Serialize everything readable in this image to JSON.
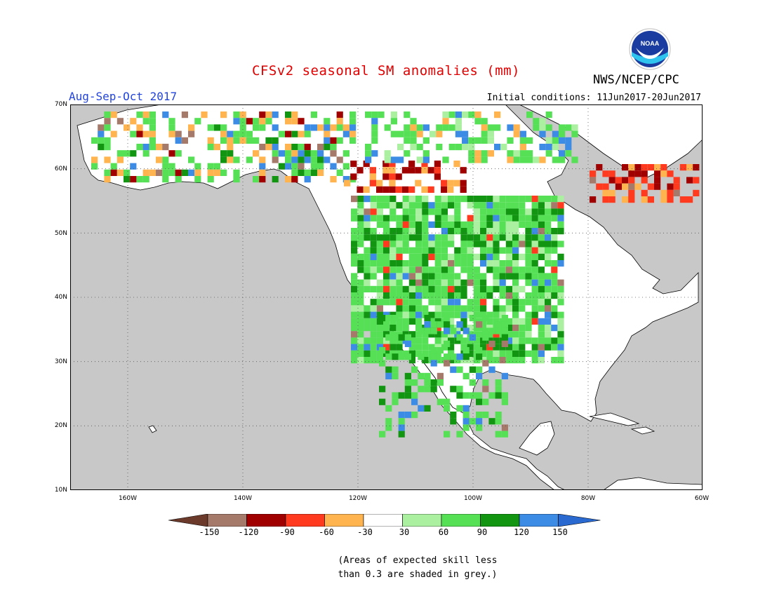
{
  "title": "CFSv2 seasonal SM anomalies (mm)",
  "season": "Aug-Sep-Oct 2017",
  "initial_conditions": "Initial conditions: 11Jun2017-20Jun2017",
  "agency": "NWS/NCEP/CPC",
  "logo_text": "NOAA",
  "lat_labels": [
    "70N",
    "60N",
    "50N",
    "40N",
    "30N",
    "20N",
    "10N"
  ],
  "lon_labels": [
    "160W",
    "140W",
    "120W",
    "100W",
    "80W",
    "60W"
  ],
  "colorbar": {
    "labels": [
      "-150",
      "-120",
      "-90",
      "-60",
      "-30",
      "30",
      "60",
      "90",
      "120",
      "150"
    ],
    "colors": [
      "#6b3a2a",
      "#a57a6b",
      "#a00000",
      "#ff3a1e",
      "#ffb450",
      "#ffffff",
      "#aaf0a0",
      "#55e055",
      "#129612",
      "#3c8ce6",
      "#2a6ad0"
    ]
  },
  "note_line1": "(Areas of expected skill less",
  "note_line2": "than 0.3 are shaded in grey.)",
  "colors": {
    "ocean": "#c8c8c8",
    "land": "#ffffff",
    "title": "#e00000",
    "season": "#2244dd"
  }
}
